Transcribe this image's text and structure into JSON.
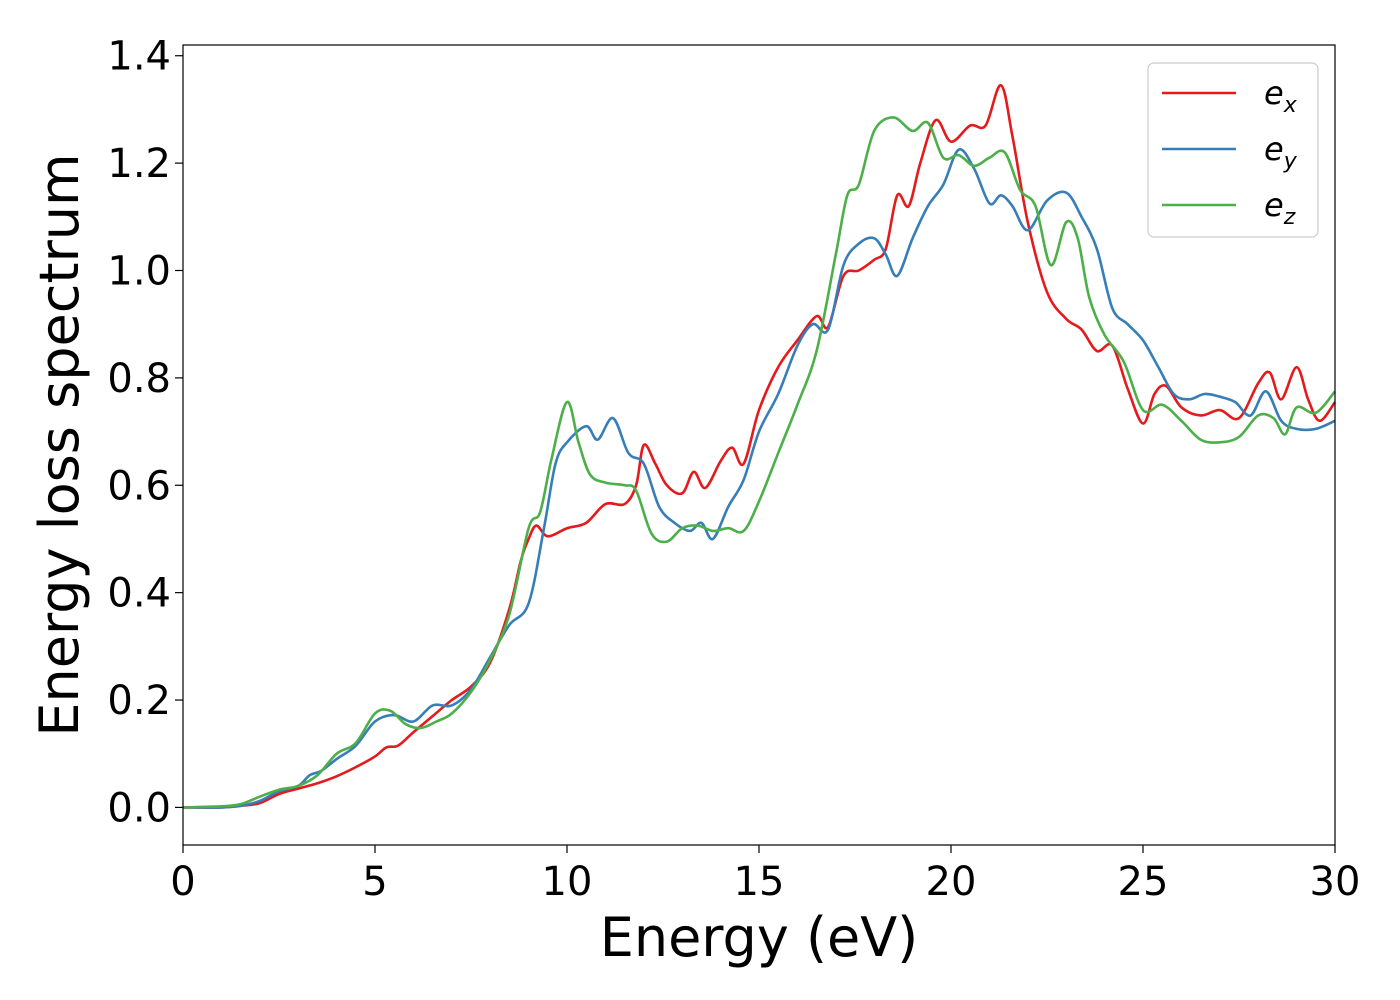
{
  "chart_data": {
    "type": "line",
    "title": "",
    "xlabel": "Energy (eV)",
    "ylabel": "Energy loss spectrum",
    "xlim": [
      0,
      30
    ],
    "ylim": [
      -0.07,
      1.42
    ],
    "xticks": [
      0,
      5,
      10,
      15,
      20,
      25,
      30
    ],
    "xtick_labels": [
      "0",
      "5",
      "10",
      "15",
      "20",
      "25",
      "30"
    ],
    "yticks": [
      0.0,
      0.2,
      0.4,
      0.6,
      0.8,
      1.0,
      1.2,
      1.4
    ],
    "ytick_labels": [
      "0.0",
      "0.2",
      "0.4",
      "0.6",
      "0.8",
      "1.0",
      "1.2",
      "1.4"
    ],
    "grid": false,
    "legend_position": "top-right",
    "series": [
      {
        "name": "e",
        "subscript": "x",
        "color": "#e41a1c",
        "points": [
          [
            0,
            0
          ],
          [
            1,
            0.0
          ],
          [
            1.5,
            0.003
          ],
          [
            2,
            0.008
          ],
          [
            2.5,
            0.025
          ],
          [
            3,
            0.035
          ],
          [
            3.5,
            0.045
          ],
          [
            4,
            0.058
          ],
          [
            4.5,
            0.075
          ],
          [
            5,
            0.095
          ],
          [
            5.3,
            0.112
          ],
          [
            5.6,
            0.115
          ],
          [
            6,
            0.14
          ],
          [
            6.5,
            0.17
          ],
          [
            7,
            0.2
          ],
          [
            7.5,
            0.225
          ],
          [
            8,
            0.27
          ],
          [
            8.5,
            0.37
          ],
          [
            8.8,
            0.46
          ],
          [
            9,
            0.5
          ],
          [
            9.2,
            0.525
          ],
          [
            9.5,
            0.505
          ],
          [
            10,
            0.52
          ],
          [
            10.5,
            0.53
          ],
          [
            11,
            0.565
          ],
          [
            11.5,
            0.565
          ],
          [
            11.8,
            0.6
          ],
          [
            12,
            0.675
          ],
          [
            12.3,
            0.64
          ],
          [
            12.6,
            0.6
          ],
          [
            13,
            0.585
          ],
          [
            13.3,
            0.625
          ],
          [
            13.6,
            0.595
          ],
          [
            14,
            0.645
          ],
          [
            14.3,
            0.67
          ],
          [
            14.6,
            0.64
          ],
          [
            15,
            0.74
          ],
          [
            15.5,
            0.82
          ],
          [
            16,
            0.87
          ],
          [
            16.5,
            0.915
          ],
          [
            16.8,
            0.895
          ],
          [
            17.2,
            0.99
          ],
          [
            17.6,
            1.0
          ],
          [
            18,
            1.02
          ],
          [
            18.3,
            1.04
          ],
          [
            18.6,
            1.14
          ],
          [
            18.9,
            1.12
          ],
          [
            19.2,
            1.2
          ],
          [
            19.6,
            1.28
          ],
          [
            20,
            1.24
          ],
          [
            20.5,
            1.27
          ],
          [
            20.9,
            1.27
          ],
          [
            21.3,
            1.345
          ],
          [
            21.6,
            1.25
          ],
          [
            22,
            1.09
          ],
          [
            22.5,
            0.96
          ],
          [
            23,
            0.91
          ],
          [
            23.4,
            0.89
          ],
          [
            23.8,
            0.85
          ],
          [
            24.2,
            0.86
          ],
          [
            24.6,
            0.78
          ],
          [
            25,
            0.715
          ],
          [
            25.3,
            0.77
          ],
          [
            25.6,
            0.785
          ],
          [
            26,
            0.745
          ],
          [
            26.5,
            0.73
          ],
          [
            27,
            0.74
          ],
          [
            27.5,
            0.725
          ],
          [
            28,
            0.79
          ],
          [
            28.3,
            0.81
          ],
          [
            28.6,
            0.76
          ],
          [
            29,
            0.82
          ],
          [
            29.3,
            0.76
          ],
          [
            29.6,
            0.72
          ],
          [
            30,
            0.755
          ]
        ]
      },
      {
        "name": "e",
        "subscript": "y",
        "color": "#377eb8",
        "points": [
          [
            0,
            0
          ],
          [
            1,
            0.0
          ],
          [
            1.5,
            0.003
          ],
          [
            2,
            0.012
          ],
          [
            2.5,
            0.03
          ],
          [
            3,
            0.04
          ],
          [
            3.3,
            0.06
          ],
          [
            3.6,
            0.068
          ],
          [
            4,
            0.09
          ],
          [
            4.5,
            0.115
          ],
          [
            5,
            0.16
          ],
          [
            5.5,
            0.172
          ],
          [
            6,
            0.16
          ],
          [
            6.5,
            0.19
          ],
          [
            7,
            0.19
          ],
          [
            7.5,
            0.22
          ],
          [
            8,
            0.28
          ],
          [
            8.5,
            0.34
          ],
          [
            9,
            0.38
          ],
          [
            9.4,
            0.52
          ],
          [
            9.7,
            0.64
          ],
          [
            10,
            0.68
          ],
          [
            10.5,
            0.71
          ],
          [
            10.8,
            0.685
          ],
          [
            11.2,
            0.725
          ],
          [
            11.6,
            0.66
          ],
          [
            12,
            0.64
          ],
          [
            12.4,
            0.56
          ],
          [
            12.8,
            0.53
          ],
          [
            13.2,
            0.515
          ],
          [
            13.5,
            0.53
          ],
          [
            13.8,
            0.5
          ],
          [
            14.2,
            0.56
          ],
          [
            14.6,
            0.61
          ],
          [
            15,
            0.7
          ],
          [
            15.5,
            0.77
          ],
          [
            16,
            0.86
          ],
          [
            16.4,
            0.9
          ],
          [
            16.8,
            0.89
          ],
          [
            17.2,
            1.01
          ],
          [
            17.6,
            1.05
          ],
          [
            18,
            1.06
          ],
          [
            18.3,
            1.03
          ],
          [
            18.6,
            0.99
          ],
          [
            19,
            1.06
          ],
          [
            19.4,
            1.12
          ],
          [
            19.8,
            1.16
          ],
          [
            20.2,
            1.225
          ],
          [
            20.6,
            1.19
          ],
          [
            21,
            1.125
          ],
          [
            21.3,
            1.14
          ],
          [
            21.6,
            1.12
          ],
          [
            22,
            1.075
          ],
          [
            22.5,
            1.13
          ],
          [
            23,
            1.145
          ],
          [
            23.4,
            1.1
          ],
          [
            23.8,
            1.04
          ],
          [
            24.2,
            0.93
          ],
          [
            24.6,
            0.9
          ],
          [
            25,
            0.87
          ],
          [
            25.4,
            0.82
          ],
          [
            25.8,
            0.77
          ],
          [
            26.2,
            0.76
          ],
          [
            26.6,
            0.77
          ],
          [
            27,
            0.765
          ],
          [
            27.4,
            0.755
          ],
          [
            27.8,
            0.73
          ],
          [
            28.2,
            0.775
          ],
          [
            28.6,
            0.72
          ],
          [
            29,
            0.705
          ],
          [
            29.5,
            0.705
          ],
          [
            30,
            0.72
          ]
        ]
      },
      {
        "name": "e",
        "subscript": "z",
        "color": "#4daf4a",
        "points": [
          [
            0,
            0
          ],
          [
            1,
            0.002
          ],
          [
            1.5,
            0.006
          ],
          [
            2,
            0.02
          ],
          [
            2.5,
            0.033
          ],
          [
            3,
            0.04
          ],
          [
            3.5,
            0.06
          ],
          [
            4,
            0.1
          ],
          [
            4.5,
            0.12
          ],
          [
            5,
            0.175
          ],
          [
            5.4,
            0.18
          ],
          [
            5.8,
            0.155
          ],
          [
            6.2,
            0.148
          ],
          [
            6.6,
            0.16
          ],
          [
            7,
            0.175
          ],
          [
            7.5,
            0.215
          ],
          [
            8,
            0.275
          ],
          [
            8.5,
            0.36
          ],
          [
            9,
            0.52
          ],
          [
            9.3,
            0.55
          ],
          [
            9.6,
            0.65
          ],
          [
            10,
            0.755
          ],
          [
            10.3,
            0.68
          ],
          [
            10.6,
            0.62
          ],
          [
            11,
            0.605
          ],
          [
            11.5,
            0.6
          ],
          [
            11.8,
            0.59
          ],
          [
            12.2,
            0.51
          ],
          [
            12.6,
            0.495
          ],
          [
            13,
            0.52
          ],
          [
            13.4,
            0.525
          ],
          [
            13.8,
            0.515
          ],
          [
            14.2,
            0.52
          ],
          [
            14.6,
            0.515
          ],
          [
            15,
            0.57
          ],
          [
            15.5,
            0.66
          ],
          [
            16,
            0.75
          ],
          [
            16.5,
            0.85
          ],
          [
            17,
            1.03
          ],
          [
            17.3,
            1.14
          ],
          [
            17.6,
            1.16
          ],
          [
            18,
            1.26
          ],
          [
            18.5,
            1.285
          ],
          [
            19,
            1.26
          ],
          [
            19.4,
            1.275
          ],
          [
            19.8,
            1.21
          ],
          [
            20.2,
            1.215
          ],
          [
            20.6,
            1.195
          ],
          [
            21,
            1.21
          ],
          [
            21.4,
            1.22
          ],
          [
            21.8,
            1.15
          ],
          [
            22.2,
            1.12
          ],
          [
            22.6,
            1.01
          ],
          [
            23,
            1.09
          ],
          [
            23.3,
            1.06
          ],
          [
            23.6,
            0.95
          ],
          [
            24,
            0.88
          ],
          [
            24.5,
            0.83
          ],
          [
            25,
            0.74
          ],
          [
            25.5,
            0.75
          ],
          [
            26,
            0.72
          ],
          [
            26.5,
            0.685
          ],
          [
            27,
            0.68
          ],
          [
            27.5,
            0.69
          ],
          [
            28,
            0.73
          ],
          [
            28.4,
            0.725
          ],
          [
            28.7,
            0.695
          ],
          [
            29,
            0.745
          ],
          [
            29.5,
            0.735
          ],
          [
            30,
            0.775
          ]
        ]
      }
    ]
  }
}
